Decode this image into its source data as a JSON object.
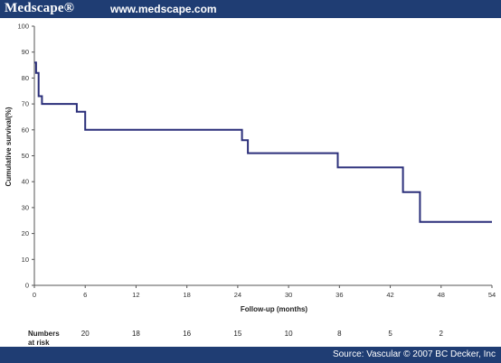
{
  "header": {
    "brand": "Medscape®",
    "url": "www.medscape.com",
    "color": "#1f3d73"
  },
  "footer": {
    "source": "Source: Vascular © 2007 BC Decker, Inc"
  },
  "chart_data": {
    "type": "line",
    "step": true,
    "xlabel": "Follow-up (months)",
    "ylabel": "Cumulative survival(%)",
    "xlim": [
      0,
      54
    ],
    "ylim": [
      0,
      100
    ],
    "xticks": [
      0,
      6,
      12,
      18,
      24,
      30,
      36,
      42,
      48,
      54
    ],
    "yticks": [
      0,
      10,
      20,
      30,
      40,
      50,
      60,
      70,
      80,
      90,
      100
    ],
    "grid": false,
    "line_color": "#2b2f7a",
    "series": [
      {
        "x": [
          0,
          0.2,
          0.2,
          0.5,
          0.5,
          0.9,
          0.9,
          5,
          5,
          6,
          6,
          24.5,
          24.5,
          25.2,
          25.2,
          35.8,
          35.8,
          43.5,
          43.5,
          45.5,
          45.5,
          54
        ],
        "y": [
          86,
          86,
          82,
          82,
          73,
          73,
          70,
          70,
          67,
          67,
          60,
          60,
          56,
          56,
          51,
          51,
          45.5,
          45.5,
          36,
          36,
          24.5,
          24.5
        ]
      }
    ],
    "risk_table": {
      "label_line1": "Numbers",
      "label_line2": "at risk",
      "x": [
        6,
        12,
        18,
        24,
        30,
        36,
        42,
        48
      ],
      "values": [
        "20",
        "18",
        "16",
        "15",
        "10",
        "8",
        "5",
        "2"
      ]
    }
  }
}
